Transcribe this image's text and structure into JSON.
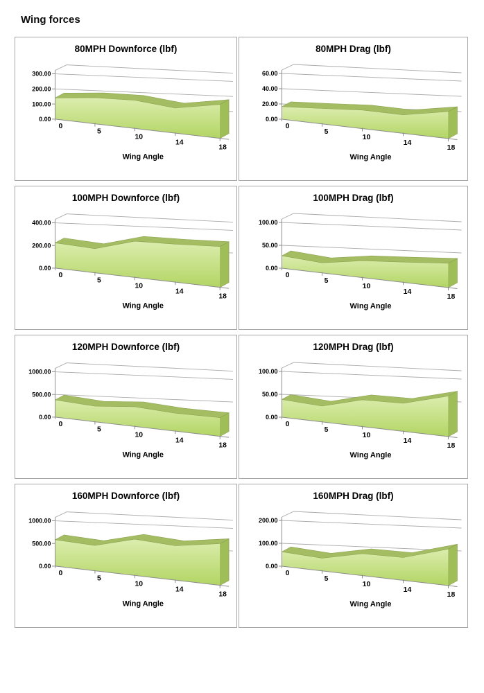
{
  "page": {
    "title": "Wing forces"
  },
  "colors": {
    "face_top": "#dcedae",
    "face_bottom": "#b2d563",
    "ribbon_top": "#a4bd62",
    "side_face": "#9fbe58",
    "edge_stroke": "#8ca24f",
    "grid": "#ababab",
    "axis": "#8c8c8c",
    "card_border": "#a6a6a6",
    "text": "#000000"
  },
  "chart_data": [
    {
      "id": "80mph-downforce",
      "type": "area",
      "title": "80MPH Downforce (lbf)",
      "xlabel": "Wing Angle",
      "categories": [
        0,
        5,
        10,
        14,
        18
      ],
      "values": [
        145,
        170,
        175,
        150,
        190
      ],
      "ylim": [
        0,
        300
      ],
      "y_ticks": [
        "300.00",
        "200.00",
        "100.00",
        "0.00"
      ],
      "legend": "none",
      "grid": "horizontal-3d"
    },
    {
      "id": "80mph-drag",
      "type": "area",
      "title": "80MPH Drag (lbf)",
      "xlabel": "Wing Angle",
      "categories": [
        0,
        5,
        10,
        14,
        18
      ],
      "values": [
        17,
        20,
        23,
        22,
        30
      ],
      "ylim": [
        0,
        60
      ],
      "y_ticks": [
        "60.00",
        "40.00",
        "20.00",
        "0.00"
      ],
      "legend": "none",
      "grid": "horizontal-3d"
    },
    {
      "id": "100mph-downforce",
      "type": "area",
      "title": "100MPH Downforce (lbf)",
      "xlabel": "Wing Angle",
      "categories": [
        0,
        5,
        10,
        14,
        18
      ],
      "values": [
        230,
        210,
        300,
        300,
        305
      ],
      "ylim": [
        0,
        400
      ],
      "y_ticks": [
        "400.00",
        "200.00",
        "0.00"
      ],
      "legend": "none",
      "grid": "horizontal-3d"
    },
    {
      "id": "100mph-drag",
      "type": "area",
      "title": "100MPH Drag (lbf)",
      "xlabel": "Wing Angle",
      "categories": [
        0,
        5,
        10,
        14,
        18
      ],
      "values": [
        28,
        22,
        35,
        40,
        45
      ],
      "ylim": [
        0,
        100
      ],
      "y_ticks": [
        "100.00",
        "50.00",
        "0.00"
      ],
      "legend": "none",
      "grid": "horizontal-3d"
    },
    {
      "id": "120mph-downforce",
      "type": "area",
      "title": "120MPH Downforce (lbf)",
      "xlabel": "Wing Angle",
      "categories": [
        0,
        5,
        10,
        14,
        18
      ],
      "values": [
        390,
        340,
        410,
        360,
        350
      ],
      "ylim": [
        0,
        1000
      ],
      "y_ticks": [
        "1000.00",
        "500.00",
        "0.00"
      ],
      "legend": "none",
      "grid": "horizontal-3d"
    },
    {
      "id": "120mph-drag",
      "type": "area",
      "title": "120MPH Drag (lbf)",
      "xlabel": "Wing Angle",
      "categories": [
        0,
        5,
        10,
        14,
        18
      ],
      "values": [
        40,
        34,
        55,
        55,
        75
      ],
      "ylim": [
        0,
        100
      ],
      "y_ticks": [
        "100.00",
        "50.00",
        "0.00"
      ],
      "legend": "none",
      "grid": "horizontal-3d"
    },
    {
      "id": "160mph-downforce",
      "type": "area",
      "title": "160MPH Downforce (lbf)",
      "xlabel": "Wing Angle",
      "categories": [
        0,
        5,
        10,
        14,
        18
      ],
      "values": [
        600,
        550,
        750,
        680,
        780
      ],
      "ylim": [
        0,
        1000
      ],
      "y_ticks": [
        "1000.00",
        "500.00",
        "0.00"
      ],
      "legend": "none",
      "grid": "horizontal-3d"
    },
    {
      "id": "160mph-drag",
      "type": "area",
      "title": "160MPH Drag (lbf)",
      "xlabel": "Wing Angle",
      "categories": [
        0,
        5,
        10,
        14,
        18
      ],
      "values": [
        65,
        55,
        90,
        90,
        135
      ],
      "ylim": [
        0,
        200
      ],
      "y_ticks": [
        "200.00",
        "100.00",
        "0.00"
      ],
      "legend": "none",
      "grid": "horizontal-3d"
    }
  ]
}
